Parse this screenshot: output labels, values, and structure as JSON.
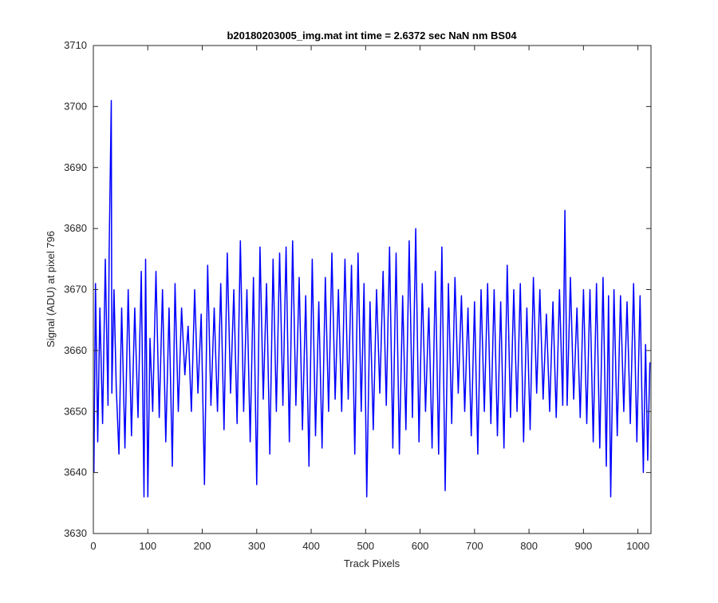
{
  "chart_data": {
    "type": "line",
    "title": "b20180203005_img.mat int time = 2.6372 sec  NaN nm BS04",
    "xlabel": "Track Pixels",
    "ylabel": "Signal (ADU) at pixel 796",
    "xlim": [
      0,
      1024
    ],
    "ylim": [
      3630,
      3710
    ],
    "xticks": [
      0,
      100,
      200,
      300,
      400,
      500,
      600,
      700,
      800,
      900,
      1000
    ],
    "yticks": [
      3630,
      3640,
      3650,
      3660,
      3670,
      3680,
      3690,
      3700,
      3710
    ],
    "grid": false,
    "line_color": "#0000ff",
    "series": [
      {
        "x": [
          1,
          4,
          8,
          12,
          17,
          22,
          27,
          29,
          33,
          34,
          38,
          42,
          47,
          52,
          58,
          64,
          70,
          76,
          82,
          88,
          93,
          96,
          100,
          104,
          109,
          115,
          121,
          127,
          133,
          139,
          145,
          150,
          156,
          162,
          168,
          174,
          180,
          186,
          192,
          198,
          204,
          210,
          216,
          222,
          228,
          234,
          240,
          246,
          252,
          258,
          264,
          270,
          276,
          282,
          288,
          294,
          300,
          306,
          312,
          318,
          324,
          330,
          336,
          342,
          348,
          354,
          360,
          366,
          372,
          378,
          384,
          390,
          396,
          402,
          408,
          414,
          420,
          426,
          432,
          438,
          444,
          450,
          456,
          462,
          468,
          474,
          480,
          486,
          492,
          497,
          502,
          508,
          514,
          520,
          526,
          532,
          538,
          544,
          550,
          556,
          562,
          568,
          574,
          580,
          586,
          592,
          598,
          604,
          610,
          616,
          622,
          628,
          634,
          640,
          646,
          652,
          658,
          664,
          670,
          676,
          682,
          688,
          694,
          700,
          706,
          712,
          718,
          724,
          730,
          736,
          742,
          748,
          754,
          760,
          766,
          772,
          778,
          784,
          790,
          796,
          802,
          808,
          814,
          820,
          826,
          832,
          838,
          844,
          850,
          856,
          862,
          866,
          870,
          876,
          882,
          888,
          894,
          900,
          906,
          912,
          918,
          924,
          930,
          936,
          942,
          946,
          950,
          956,
          962,
          968,
          974,
          980,
          986,
          992,
          998,
          1004,
          1010,
          1014,
          1018,
          1022
        ],
        "y": [
          3640,
          3671,
          3645,
          3667,
          3648,
          3675,
          3651,
          3676,
          3701,
          3653,
          3670,
          3654,
          3643,
          3667,
          3644,
          3670,
          3646,
          3667,
          3649,
          3673,
          3636,
          3675,
          3636,
          3662,
          3650,
          3673,
          3649,
          3670,
          3645,
          3667,
          3641,
          3671,
          3650,
          3667,
          3656,
          3664,
          3650,
          3670,
          3653,
          3666,
          3638,
          3674,
          3651,
          3667,
          3650,
          3671,
          3647,
          3676,
          3653,
          3670,
          3648,
          3678,
          3650,
          3670,
          3645,
          3672,
          3638,
          3677,
          3652,
          3671,
          3643,
          3675,
          3650,
          3676,
          3651,
          3677,
          3645,
          3678,
          3651,
          3672,
          3647,
          3669,
          3641,
          3675,
          3646,
          3668,
          3644,
          3672,
          3650,
          3676,
          3652,
          3670,
          3650,
          3675,
          3652,
          3674,
          3643,
          3676,
          3650,
          3671,
          3636,
          3668,
          3647,
          3670,
          3653,
          3673,
          3651,
          3677,
          3644,
          3676,
          3643,
          3669,
          3647,
          3678,
          3649,
          3680,
          3645,
          3671,
          3650,
          3667,
          3644,
          3673,
          3643,
          3677,
          3637,
          3671,
          3648,
          3672,
          3653,
          3669,
          3650,
          3667,
          3646,
          3668,
          3643,
          3670,
          3650,
          3671,
          3648,
          3670,
          3646,
          3668,
          3644,
          3674,
          3649,
          3670,
          3650,
          3671,
          3645,
          3667,
          3647,
          3672,
          3653,
          3670,
          3652,
          3666,
          3650,
          3668,
          3649,
          3670,
          3651,
          3683,
          3651,
          3672,
          3652,
          3667,
          3649,
          3670,
          3648,
          3670,
          3645,
          3671,
          3644,
          3672,
          3641,
          3669,
          3636,
          3670,
          3646,
          3669,
          3650,
          3668,
          3648,
          3671,
          3645,
          3669,
          3640,
          3661,
          3642,
          3658
        ]
      }
    ]
  }
}
